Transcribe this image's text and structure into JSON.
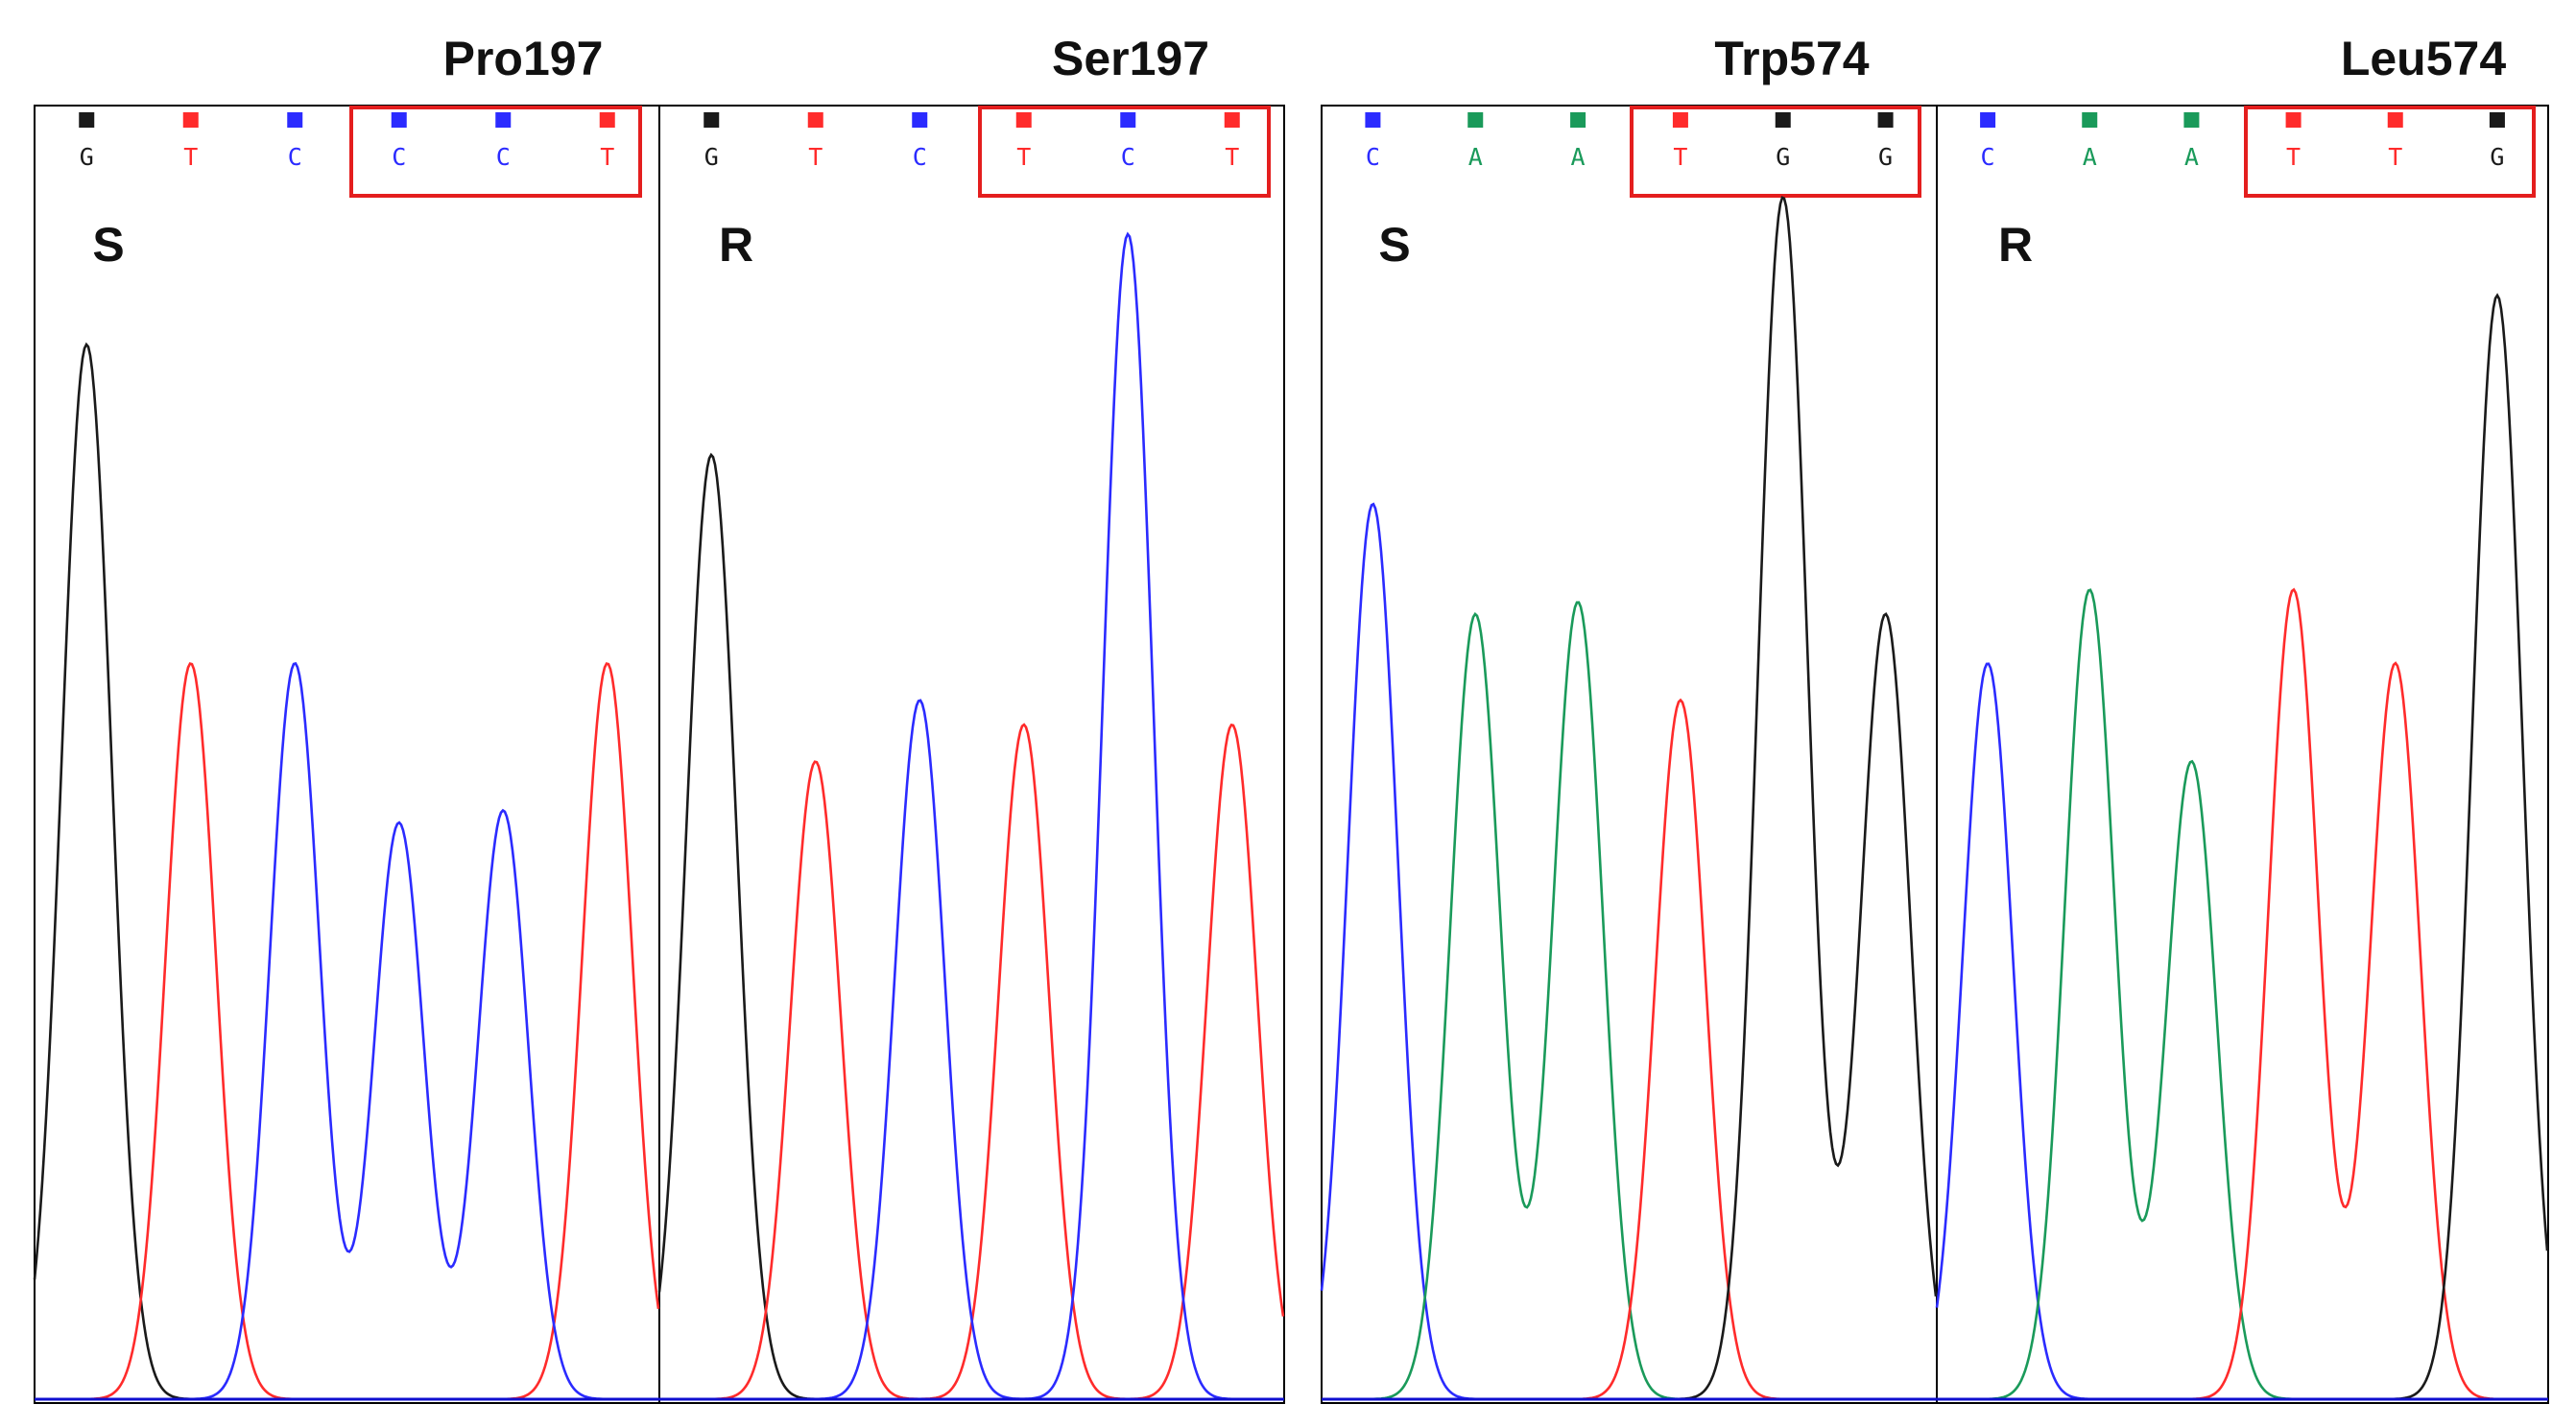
{
  "figure": {
    "colors": {
      "A": "#1a9a5a",
      "C": "#2b2bff",
      "G": "#1a1a1a",
      "T": "#ff2b2b",
      "highlight_box": "#e41e1e",
      "frame": "#000000",
      "baseline_blue": "#1010d0",
      "baseline_green": "#1a9a5a"
    },
    "groups": [
      {
        "name": "codon-197",
        "panels": [
          {
            "id": "pro197",
            "title": "Pro197",
            "label": "S",
            "bases": [
              "G",
              "T",
              "C",
              "C",
              "C",
              "T"
            ],
            "peak_heights": [
              0.86,
              0.6,
              0.6,
              0.47,
              0.48,
              0.6
            ],
            "highlighted_bases": [
              3,
              4,
              5
            ]
          },
          {
            "id": "ser197",
            "title": "Ser197",
            "label": "R",
            "bases": [
              "G",
              "T",
              "C",
              "T",
              "C",
              "T"
            ],
            "peak_heights": [
              0.77,
              0.52,
              0.57,
              0.55,
              0.95,
              0.55
            ],
            "highlighted_bases": [
              3,
              4,
              5
            ]
          }
        ]
      },
      {
        "name": "codon-574",
        "panels": [
          {
            "id": "trp574",
            "title": "Trp574",
            "label": "S",
            "bases": [
              "C",
              "A",
              "A",
              "T",
              "G",
              "G"
            ],
            "peak_heights": [
              0.73,
              0.64,
              0.65,
              0.57,
              0.98,
              0.64
            ],
            "highlighted_bases": [
              3,
              4,
              5
            ]
          },
          {
            "id": "leu574",
            "title": "Leu574",
            "label": "R",
            "bases": [
              "C",
              "A",
              "A",
              "T",
              "T",
              "G"
            ],
            "peak_heights": [
              0.6,
              0.66,
              0.52,
              0.66,
              0.6,
              0.9
            ],
            "highlighted_bases": [
              3,
              4,
              5
            ]
          }
        ]
      }
    ]
  }
}
